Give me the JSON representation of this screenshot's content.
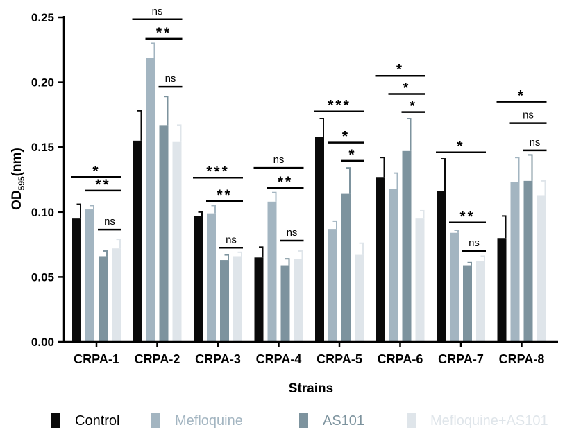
{
  "chart_data": {
    "type": "bar",
    "xlabel": "Strains",
    "ylabel": {
      "main": "OD",
      "sub": "595",
      "unit": "(nm)"
    },
    "ylim": [
      0,
      0.25
    ],
    "yticks": [
      "0.00",
      "0.05",
      "0.10",
      "0.15",
      "0.20",
      "0.25"
    ],
    "grid": false,
    "legend_position": "bottom",
    "categories": [
      "CRPA-1",
      "CRPA-2",
      "CRPA-3",
      "CRPA-4",
      "CRPA-5",
      "CRPA-6",
      "CRPA-7",
      "CRPA-8"
    ],
    "series": [
      {
        "name": "Control",
        "color": "#0a0a0a",
        "values": [
          0.095,
          0.155,
          0.097,
          0.065,
          0.158,
          0.127,
          0.116,
          0.08
        ],
        "errors": [
          0.011,
          0.023,
          0.003,
          0.008,
          0.014,
          0.015,
          0.025,
          0.017
        ]
      },
      {
        "name": "Mefloquine",
        "color": "#a3b5c1",
        "values": [
          0.102,
          0.219,
          0.099,
          0.108,
          0.087,
          0.118,
          0.084,
          0.123
        ],
        "errors": [
          0.003,
          0.011,
          0.006,
          0.007,
          0.006,
          0.012,
          0.002,
          0.019
        ]
      },
      {
        "name": "AS101",
        "color": "#7d939e",
        "values": [
          0.066,
          0.167,
          0.063,
          0.059,
          0.114,
          0.147,
          0.059,
          0.124
        ],
        "errors": [
          0.004,
          0.022,
          0.004,
          0.005,
          0.02,
          0.025,
          0.002,
          0.02
        ]
      },
      {
        "name": "Mefloquine+AS101",
        "color": "#dfe5ea",
        "values": [
          0.072,
          0.154,
          0.066,
          0.064,
          0.067,
          0.095,
          0.062,
          0.113
        ],
        "errors": [
          0.007,
          0.013,
          0.003,
          0.006,
          0.009,
          0.006,
          0.004,
          0.011
        ]
      }
    ],
    "significance": [
      {
        "category": 0,
        "from": 0,
        "to": 3,
        "label": "*",
        "level": 0.127
      },
      {
        "category": 0,
        "from": 1,
        "to": 3,
        "label": "**",
        "level": 0.1165
      },
      {
        "category": 0,
        "from": 2,
        "to": 3,
        "label": "ns",
        "level": 0.0865
      },
      {
        "category": 1,
        "from": 0,
        "to": 3,
        "label": "ns",
        "level": 0.2485
      },
      {
        "category": 1,
        "from": 1,
        "to": 3,
        "label": "**",
        "level": 0.2335
      },
      {
        "category": 1,
        "from": 2,
        "to": 3,
        "label": "ns",
        "level": 0.1965
      },
      {
        "category": 2,
        "from": 0,
        "to": 3,
        "label": "***",
        "level": 0.1265
      },
      {
        "category": 2,
        "from": 1,
        "to": 3,
        "label": "**",
        "level": 0.1085
      },
      {
        "category": 2,
        "from": 2,
        "to": 3,
        "label": "ns",
        "level": 0.0725
      },
      {
        "category": 3,
        "from": 0,
        "to": 3,
        "label": "ns",
        "level": 0.134
      },
      {
        "category": 3,
        "from": 1,
        "to": 3,
        "label": "**",
        "level": 0.1185
      },
      {
        "category": 3,
        "from": 2,
        "to": 3,
        "label": "ns",
        "level": 0.078
      },
      {
        "category": 4,
        "from": 0,
        "to": 3,
        "label": "***",
        "level": 0.1775
      },
      {
        "category": 4,
        "from": 1,
        "to": 3,
        "label": "*",
        "level": 0.1535
      },
      {
        "category": 4,
        "from": 2,
        "to": 3,
        "label": "*",
        "level": 0.1395
      },
      {
        "category": 5,
        "from": 0,
        "to": 3,
        "label": "*",
        "level": 0.205
      },
      {
        "category": 5,
        "from": 1,
        "to": 3,
        "label": "*",
        "level": 0.191
      },
      {
        "category": 5,
        "from": 2,
        "to": 3,
        "label": "*",
        "level": 0.177
      },
      {
        "category": 6,
        "from": 0,
        "to": 3,
        "label": "*",
        "level": 0.146
      },
      {
        "category": 6,
        "from": 1,
        "to": 3,
        "label": "**",
        "level": 0.092
      },
      {
        "category": 6,
        "from": 2,
        "to": 3,
        "label": "ns",
        "level": 0.07
      },
      {
        "category": 7,
        "from": 0,
        "to": 3,
        "label": "*",
        "level": 0.185
      },
      {
        "category": 7,
        "from": 1,
        "to": 3,
        "label": "ns",
        "level": 0.1685
      },
      {
        "category": 7,
        "from": 2,
        "to": 3,
        "label": "ns",
        "level": 0.1475
      }
    ]
  }
}
